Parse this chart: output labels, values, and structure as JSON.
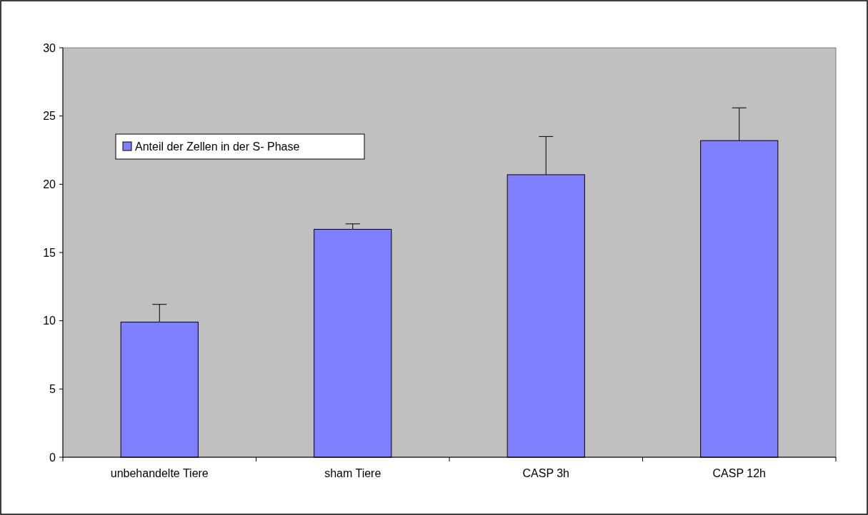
{
  "chart_data": {
    "type": "bar",
    "categories": [
      "unbehandelte Tiere",
      "sham Tiere",
      "CASP 3h",
      "CASP 12h"
    ],
    "series": [
      {
        "name": "Anteil der Zellen in der S- Phase",
        "color": "#8080ff",
        "values": [
          9.9,
          16.7,
          20.7,
          23.2
        ],
        "errors": [
          [
            9.9,
            11.2
          ],
          [
            16.7,
            17.1
          ],
          [
            20.7,
            23.5
          ],
          [
            23.2,
            25.6
          ]
        ]
      }
    ],
    "ylim": [
      0,
      30
    ],
    "yticks": [
      0,
      5,
      10,
      15,
      20,
      25,
      30
    ],
    "grid": false,
    "legend": "top left"
  }
}
